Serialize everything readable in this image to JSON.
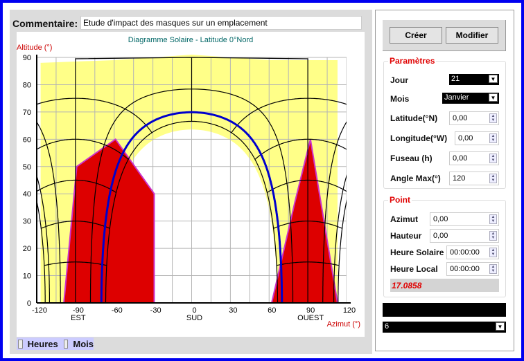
{
  "comment": {
    "label": "Commentaire:",
    "value": "Etude d'impact des masques sur un emplacement"
  },
  "footer": {
    "hours_label": "Heures",
    "months_label": "Mois"
  },
  "buttons": {
    "create": "Créer",
    "modify": "Modifier"
  },
  "params": {
    "title": "Paramètres",
    "day_label": "Jour",
    "day": "21",
    "month_label": "Mois",
    "month": "Janvier",
    "lat_label": "Latitude(°N)",
    "lat": "0,00",
    "lon_label": "Longitude(°W)",
    "lon": "0,00",
    "tz_label": "Fuseau (h)",
    "tz": "0,00",
    "angle_label": "Angle Max(°)",
    "angle": "120"
  },
  "point": {
    "title": "Point",
    "az_label": "Azimut",
    "az": "0,00",
    "alt_label": "Hauteur",
    "alt": "0,00",
    "solar_label": "Heure Solaire",
    "solar": "00:00:00",
    "local_label": "Heure Local",
    "local": "00:00:00",
    "value": "17.0858"
  },
  "bottom_select": "6",
  "chart_data": {
    "type": "line",
    "title": "Diagramme Solaire - Latitude 0°Nord",
    "ylabel": "Altitude (°)",
    "xlabel": "Azimut (°)",
    "xlim": [
      -120,
      120
    ],
    "ylim": [
      0,
      90
    ],
    "xticks": [
      -120,
      -90,
      -60,
      -30,
      0,
      30,
      60,
      90,
      120
    ],
    "yticks": [
      0,
      10,
      20,
      30,
      40,
      50,
      60,
      70,
      80,
      90
    ],
    "direction_labels": [
      {
        "x": -90,
        "label": "EST"
      },
      {
        "x": 0,
        "label": "SUD"
      },
      {
        "x": 90,
        "label": "OUEST"
      }
    ],
    "latitude": 0,
    "declinations": [
      -23.44,
      -20.1,
      -11.6,
      0,
      11.6,
      20.1,
      23.44
    ],
    "current_declination": -20.1,
    "hour_angles": [
      -90,
      -75,
      -60,
      -45,
      -30,
      -15,
      0,
      15,
      30,
      45,
      60,
      75,
      90
    ],
    "masks": [
      [
        [
          -99,
          0
        ],
        [
          -89,
          50
        ],
        [
          -59,
          60
        ],
        [
          -29,
          40
        ],
        [
          -29,
          0
        ]
      ],
      [
        [
          62,
          0
        ],
        [
          80,
          37
        ],
        [
          92,
          60
        ],
        [
          113,
          0
        ]
      ]
    ],
    "colors": {
      "visible": "#ffff88",
      "mask": "#dd0000",
      "mask_edge": "#cc33cc",
      "current": "#0000cc",
      "grid": "#b4b4b4"
    }
  }
}
